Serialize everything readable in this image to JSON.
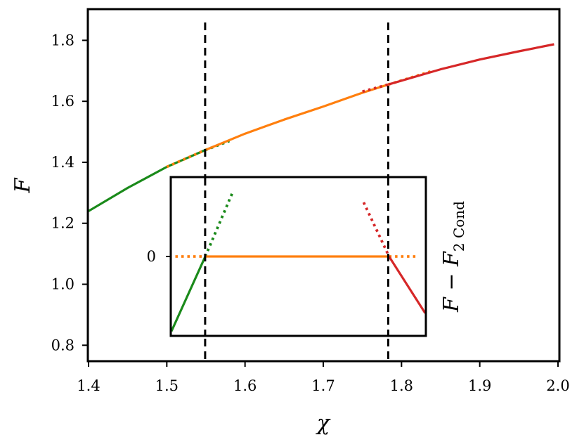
{
  "chart_data": {
    "type": "line",
    "main": {
      "xlabel": "χ",
      "ylabel": "F",
      "xlim": [
        1.4,
        2.0
      ],
      "ylim": [
        0.75,
        1.9
      ],
      "xticks": [
        "1.4",
        "1.5",
        "1.6",
        "1.7",
        "1.8",
        "1.9",
        "2.0"
      ],
      "xtick_values": [
        1.4,
        1.5,
        1.6,
        1.7,
        1.8,
        1.9,
        2.0
      ],
      "yticks": [
        "0.8",
        "1.0",
        "1.2",
        "1.4",
        "1.6",
        "1.8"
      ],
      "ytick_values": [
        0.8,
        1.0,
        1.2,
        1.4,
        1.6,
        1.8
      ],
      "vlines": [
        1.549,
        1.783
      ],
      "series": [
        {
          "color": "#1a8a1a",
          "style": "solid",
          "x": [
            1.4,
            1.45,
            1.5,
            1.549
          ],
          "y": [
            1.24,
            1.316,
            1.385,
            1.44
          ]
        },
        {
          "color": "#1a8a1a",
          "style": "dotted",
          "x": [
            1.549,
            1.58
          ],
          "y": [
            1.44,
            1.47
          ]
        },
        {
          "color": "#ff7f0e",
          "style": "dotted",
          "x": [
            1.5,
            1.549
          ],
          "y": [
            1.385,
            1.44
          ]
        },
        {
          "color": "#ff7f0e",
          "style": "solid",
          "x": [
            1.549,
            1.6,
            1.65,
            1.7,
            1.75,
            1.783
          ],
          "y": [
            1.44,
            1.494,
            1.54,
            1.583,
            1.628,
            1.655
          ]
        },
        {
          "color": "#ff7f0e",
          "style": "dotted",
          "x": [
            1.783,
            1.84
          ],
          "y": [
            1.655,
            1.7
          ]
        },
        {
          "color": "#d62728",
          "style": "dotted",
          "x": [
            1.75,
            1.783
          ],
          "y": [
            1.632,
            1.655
          ]
        },
        {
          "color": "#d62728",
          "style": "solid",
          "x": [
            1.783,
            1.85,
            1.9,
            1.95,
            1.995
          ],
          "y": [
            1.655,
            1.705,
            1.737,
            1.764,
            1.787
          ]
        }
      ]
    },
    "inset": {
      "ylabel_main": "F",
      "ylabel_minus": " − ",
      "ylabel_var": "F",
      "ylabel_sub": "2 Cond",
      "ytick_label": "0",
      "ytick_value": 0,
      "xlim": [
        1.5,
        1.83
      ],
      "ylim": [
        -1.0,
        0.8
      ],
      "vlines": [
        1.549,
        1.783
      ],
      "series": [
        {
          "color": "#1a8a1a",
          "style": "solid",
          "x": [
            1.5,
            1.544
          ],
          "y": [
            -0.95,
            0
          ]
        },
        {
          "color": "#1a8a1a",
          "style": "dotted",
          "x": [
            1.544,
            1.58
          ],
          "y": [
            0,
            0.66
          ]
        },
        {
          "color": "#ff7f0e",
          "style": "dotted",
          "x": [
            1.505,
            1.544
          ],
          "y": [
            0,
            0
          ]
        },
        {
          "color": "#ff7f0e",
          "style": "solid",
          "x": [
            1.544,
            1.783
          ],
          "y": [
            0,
            0
          ]
        },
        {
          "color": "#ff7f0e",
          "style": "dotted",
          "x": [
            1.783,
            1.82
          ],
          "y": [
            0,
            0
          ]
        },
        {
          "color": "#d62728",
          "style": "dotted",
          "x": [
            1.75,
            1.783
          ],
          "y": [
            0.55,
            0
          ]
        },
        {
          "color": "#d62728",
          "style": "solid",
          "x": [
            1.783,
            1.83
          ],
          "y": [
            0,
            -0.72
          ]
        }
      ]
    }
  }
}
